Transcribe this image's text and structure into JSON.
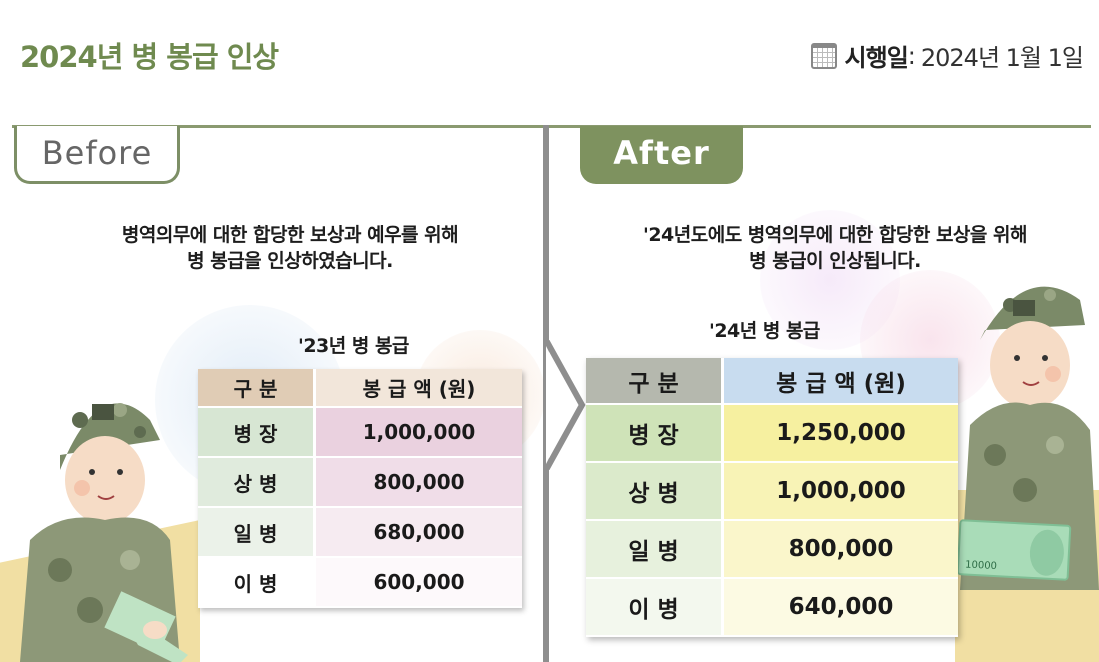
{
  "header": {
    "title": "2024년 병 봉급 인상",
    "effective_label": "시행일",
    "effective_sep": ":",
    "effective_date": "2024년 1월 1일"
  },
  "before": {
    "tab": "Before",
    "description_line1": "병역의무에 대한 합당한 보상과 예우를 위해",
    "description_line2": "병 봉급을 인상하였습니다.",
    "table_caption": "'23년 병 봉급",
    "columns": [
      "구 분",
      "봉 급 액 (원)"
    ],
    "rows": [
      {
        "rank": "병 장",
        "pay": "1,000,000"
      },
      {
        "rank": "상 병",
        "pay": "800,000"
      },
      {
        "rank": "일 병",
        "pay": "680,000"
      },
      {
        "rank": "이 병",
        "pay": "600,000"
      }
    ]
  },
  "after": {
    "tab": "After",
    "description_line1": "'24년도에도 병역의무에 대한 합당한 보상을 위해",
    "description_line2": "병 봉급이 인상됩니다.",
    "table_caption": "'24년 병 봉급",
    "columns": [
      "구 분",
      "봉 급 액 (원)"
    ],
    "rows": [
      {
        "rank": "병 장",
        "pay": "1,250,000"
      },
      {
        "rank": "상 병",
        "pay": "1,000,000"
      },
      {
        "rank": "일 병",
        "pay": "800,000"
      },
      {
        "rank": "이 병",
        "pay": "640,000"
      }
    ]
  },
  "banknote_text": "10000",
  "colors": {
    "title_green": "#6f8a4f",
    "after_tab": "#7e925f",
    "divider": "#8e8e8e"
  },
  "icons": [
    "calendar-icon",
    "soldier-illustration",
    "banknote-illustration",
    "chevron-arrow"
  ]
}
